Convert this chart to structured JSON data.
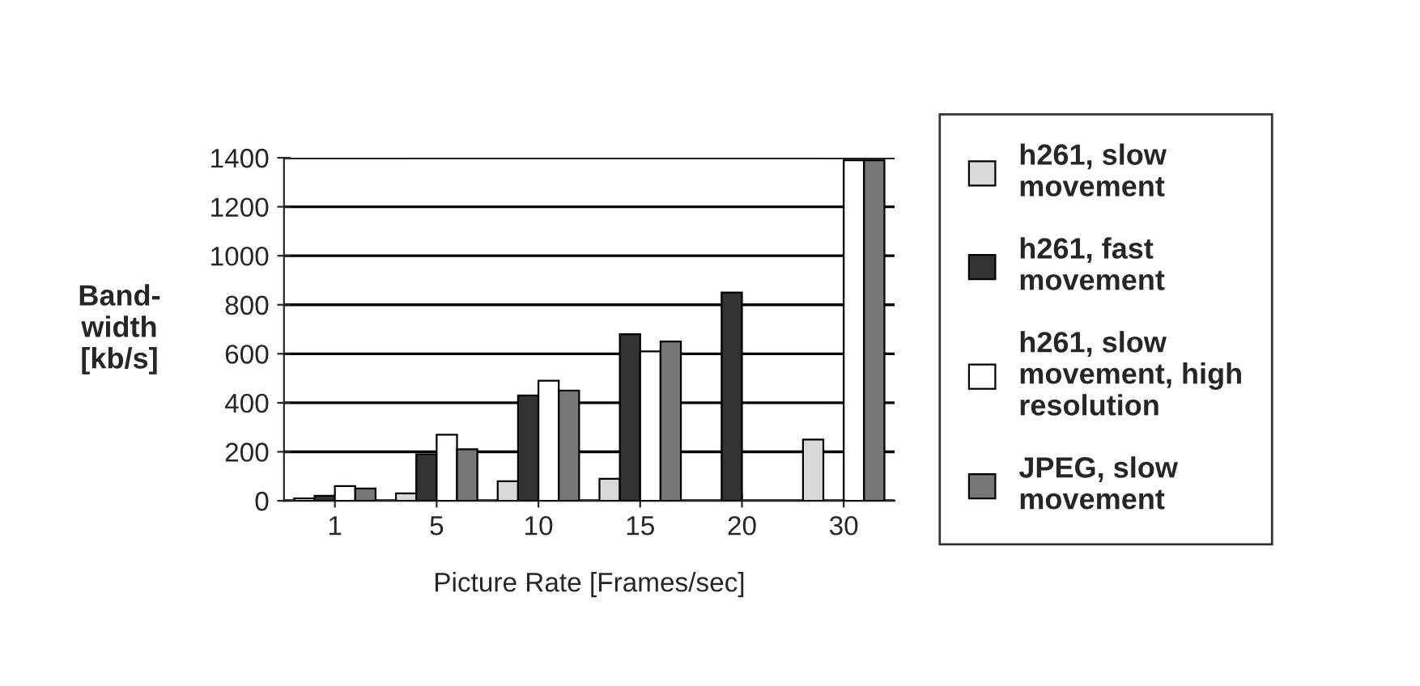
{
  "chart_data": {
    "type": "bar",
    "xlabel": "Picture Rate [Frames/sec]",
    "ylabel": "Band-\nwidth\n[kb/s]",
    "categories": [
      "1",
      "5",
      "10",
      "15",
      "20",
      "30"
    ],
    "series": [
      {
        "name": "h261, slow\nmovement",
        "color": "#d9d9d9",
        "values": [
          10,
          30,
          80,
          90,
          null,
          250
        ]
      },
      {
        "name": "h261, fast\nmovement",
        "color": "#333333",
        "values": [
          20,
          190,
          430,
          680,
          850,
          null
        ]
      },
      {
        "name": "h261, slow\nmovement, high\nresolution",
        "color": "#ffffff",
        "values": [
          60,
          270,
          490,
          610,
          null,
          1390
        ]
      },
      {
        "name": "JPEG, slow\nmovement",
        "color": "#777777",
        "values": [
          50,
          210,
          450,
          650,
          null,
          1390
        ]
      }
    ],
    "ylim": [
      0,
      1400
    ],
    "yticks": [
      0,
      200,
      400,
      600,
      800,
      1000,
      1200,
      1400
    ],
    "grid": "y",
    "legend": "right"
  }
}
